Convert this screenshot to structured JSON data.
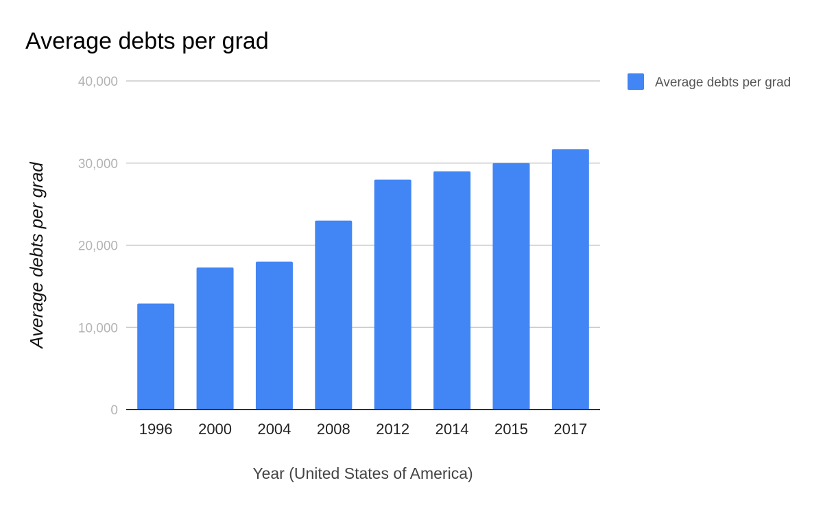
{
  "chart_data": {
    "type": "bar",
    "title": "Average debts per grad",
    "xlabel": "Year (United States of America)",
    "ylabel": "Average debts per grad",
    "categories": [
      "1996",
      "2000",
      "2004",
      "2008",
      "2012",
      "2014",
      "2015",
      "2017"
    ],
    "series": [
      {
        "name": "Average debts per grad",
        "values": [
          12900,
          17300,
          18000,
          23000,
          28000,
          29000,
          30000,
          31700
        ]
      }
    ],
    "ylim": [
      0,
      40000
    ],
    "yticks": [
      {
        "value": 0,
        "label": "0"
      },
      {
        "value": 10000,
        "label": "10,000"
      },
      {
        "value": 20000,
        "label": "20,000"
      },
      {
        "value": 30000,
        "label": "30,000"
      },
      {
        "value": 40000,
        "label": "40,000"
      }
    ],
    "grid": true,
    "legend_position": "top-right",
    "colors": {
      "bar": "#4285f4"
    }
  }
}
